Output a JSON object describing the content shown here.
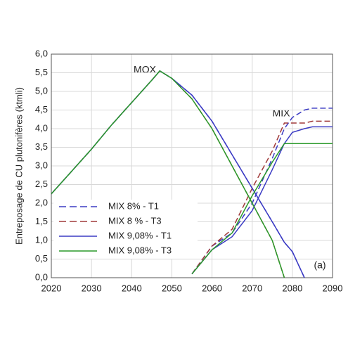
{
  "chart_data": {
    "type": "line",
    "y_label": "Entreposage de CU plutonifères (ktmli)",
    "annotations": [
      "MOX",
      "MIX",
      "(a)"
    ],
    "x": [
      2020,
      2025,
      2030,
      2035,
      2040,
      2045,
      2047,
      2050,
      2055,
      2060,
      2065,
      2070,
      2075,
      2078,
      2080,
      2083,
      2085,
      2090
    ],
    "xlim": [
      2020,
      2090
    ],
    "xticks": [
      2020,
      2030,
      2040,
      2050,
      2060,
      2070,
      2080,
      2090
    ],
    "ylim": [
      0,
      6
    ],
    "yticks": [
      {
        "value": 0,
        "label": "0,0"
      },
      {
        "value": 0.5,
        "label": "0,5"
      },
      {
        "value": 1,
        "label": "1,0"
      },
      {
        "value": 1.5,
        "label": "1,5"
      },
      {
        "value": 2,
        "label": "2,0"
      },
      {
        "value": 2.5,
        "label": "2,5"
      },
      {
        "value": 3,
        "label": "3,0"
      },
      {
        "value": 3.5,
        "label": "3,5"
      },
      {
        "value": 4,
        "label": "4,0"
      },
      {
        "value": 4.5,
        "label": "4,5"
      },
      {
        "value": 5,
        "label": "5,0"
      },
      {
        "value": 5.5,
        "label": "5,5"
      },
      {
        "value": 6,
        "label": "6,0"
      }
    ],
    "grid": true,
    "legend": "lower left",
    "series": [
      {
        "name": "MIX 8% - T1",
        "color": "#3b3bc4",
        "dashed": true,
        "mox": [
          2.25,
          2.85,
          3.45,
          4.1,
          4.7,
          5.3,
          5.55,
          5.35,
          4.9,
          4.2,
          3.3,
          2.4,
          1.5,
          0.95,
          0.7,
          0,
          null,
          null
        ],
        "mix": [
          null,
          null,
          null,
          null,
          null,
          null,
          null,
          null,
          0.1,
          0.85,
          1.2,
          2.0,
          3.2,
          4.0,
          4.3,
          4.5,
          4.55,
          4.55
        ]
      },
      {
        "name": "MIX 8 % - T3",
        "color": "#a03a3a",
        "dashed": true,
        "mox": [
          2.25,
          2.85,
          3.45,
          4.1,
          4.7,
          5.3,
          5.55,
          5.35,
          4.8,
          4.0,
          3.0,
          2.0,
          1.0,
          0,
          null,
          null,
          null,
          null
        ],
        "mix": [
          null,
          null,
          null,
          null,
          null,
          null,
          null,
          null,
          0.1,
          0.85,
          1.3,
          2.4,
          3.4,
          4.15,
          4.15,
          4.15,
          4.2,
          4.2
        ]
      },
      {
        "name": "MIX 9,08% - T1",
        "color": "#3b3bc4",
        "dashed": false,
        "mox": [
          2.25,
          2.85,
          3.45,
          4.1,
          4.7,
          5.3,
          5.55,
          5.35,
          4.9,
          4.2,
          3.3,
          2.4,
          1.5,
          0.95,
          0.7,
          0,
          null,
          null
        ],
        "mix": [
          null,
          null,
          null,
          null,
          null,
          null,
          null,
          null,
          0.1,
          0.75,
          1.1,
          1.8,
          2.9,
          3.6,
          3.9,
          4.0,
          4.05,
          4.05
        ]
      },
      {
        "name": "MIX 9,08% - T3",
        "color": "#2a9a2a",
        "dashed": false,
        "mox": [
          2.25,
          2.85,
          3.45,
          4.1,
          4.7,
          5.3,
          5.55,
          5.35,
          4.8,
          4.0,
          3.0,
          2.0,
          1.0,
          0,
          null,
          null,
          null,
          null
        ],
        "mix": [
          null,
          null,
          null,
          null,
          null,
          null,
          null,
          null,
          0.1,
          0.75,
          1.2,
          2.2,
          3.1,
          3.6,
          3.6,
          3.6,
          3.6,
          3.6
        ]
      }
    ]
  }
}
